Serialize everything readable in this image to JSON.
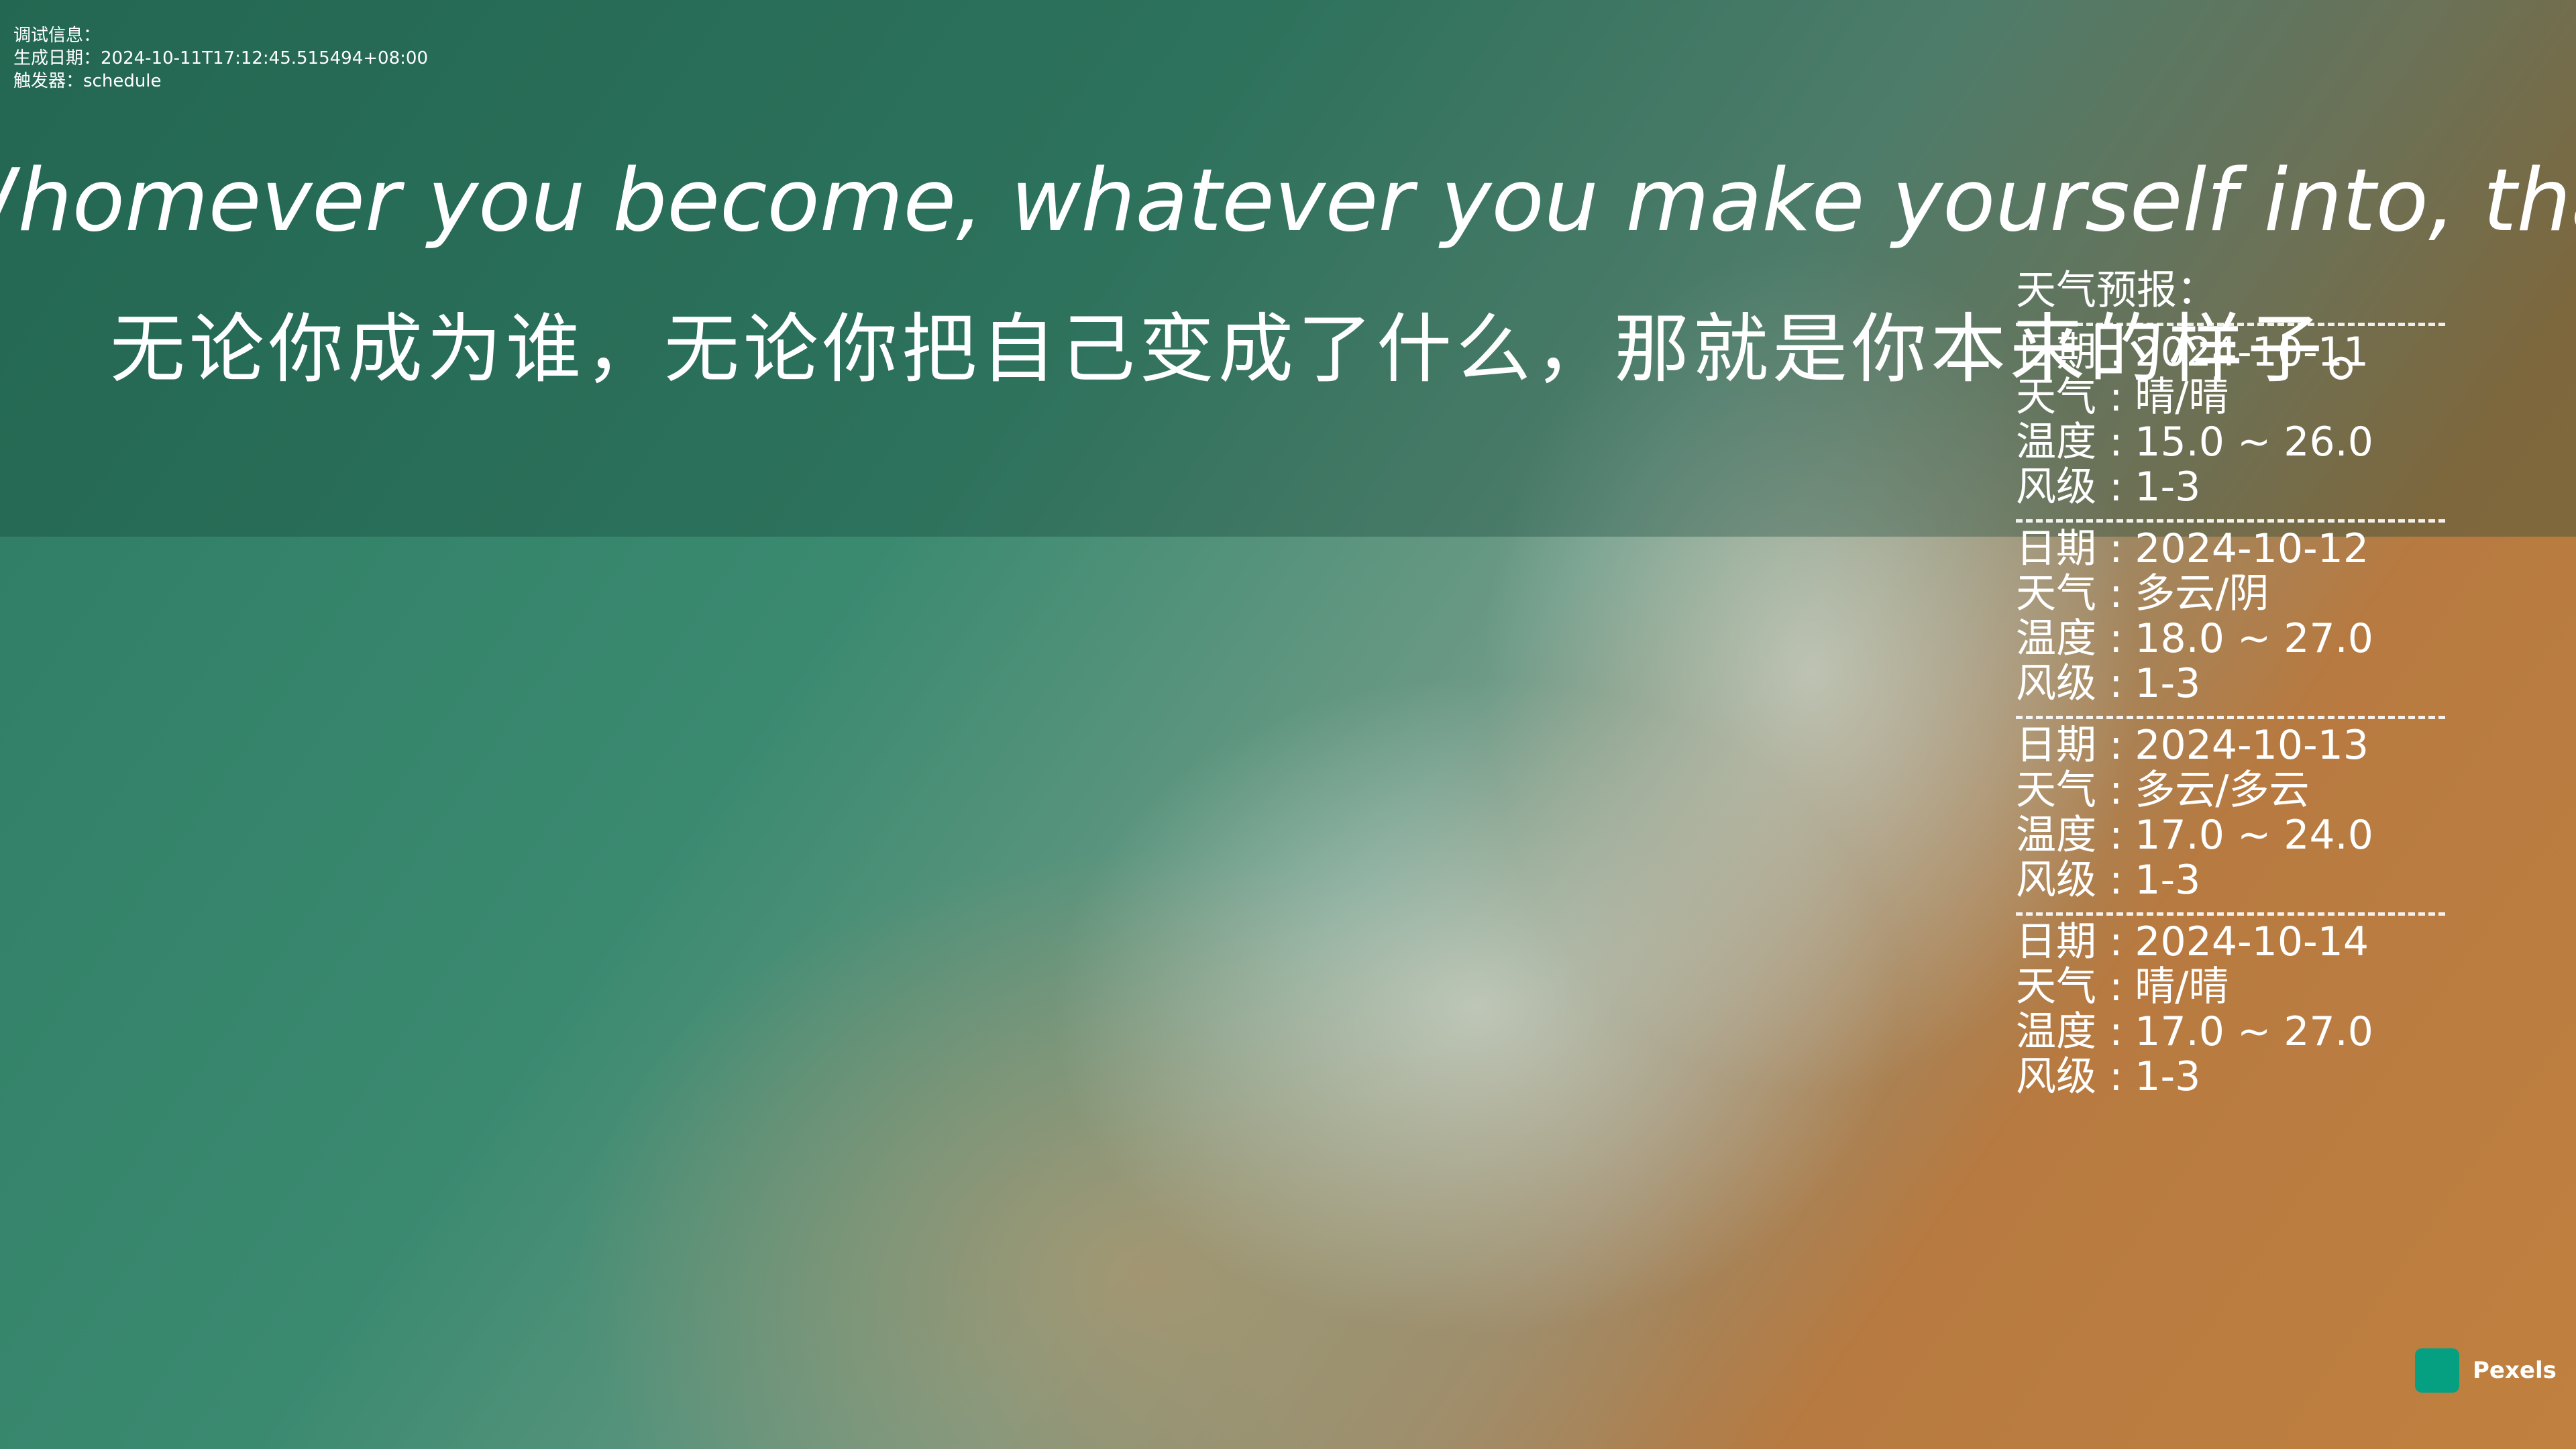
{
  "debug": {
    "lines": [
      "调试信息：",
      "生成日期：2024-10-11T17:12:45.515494+08:00",
      "触发器：schedule"
    ]
  },
  "quote": {
    "en": "Whomever you become, whatever you make yourself into, that is who you always were",
    "zh": "无论你成为谁，无论你把自己变成了什么，那就是你本来的样子。"
  },
  "weather": {
    "title": "天气预报：",
    "labels": [
      "日期 :",
      "天气 :",
      "温度 :",
      "风级 :"
    ],
    "days": [
      {
        "date": "2024-10-11",
        "weather": "晴/晴",
        "temp": "15.0 ~ 26.0",
        "wind": "1-3"
      },
      {
        "date": "2024-10-12",
        "weather": "多云/阴",
        "temp": "18.0 ~ 27.0",
        "wind": "1-3"
      },
      {
        "date": "2024-10-13",
        "weather": "多云/多云",
        "temp": "17.0 ~ 24.0",
        "wind": "1-3"
      },
      {
        "date": "2024-10-14",
        "weather": "晴/晴",
        "temp": "17.0 ~ 27.0",
        "wind": "1-3"
      }
    ]
  },
  "watermark": "Pexels"
}
